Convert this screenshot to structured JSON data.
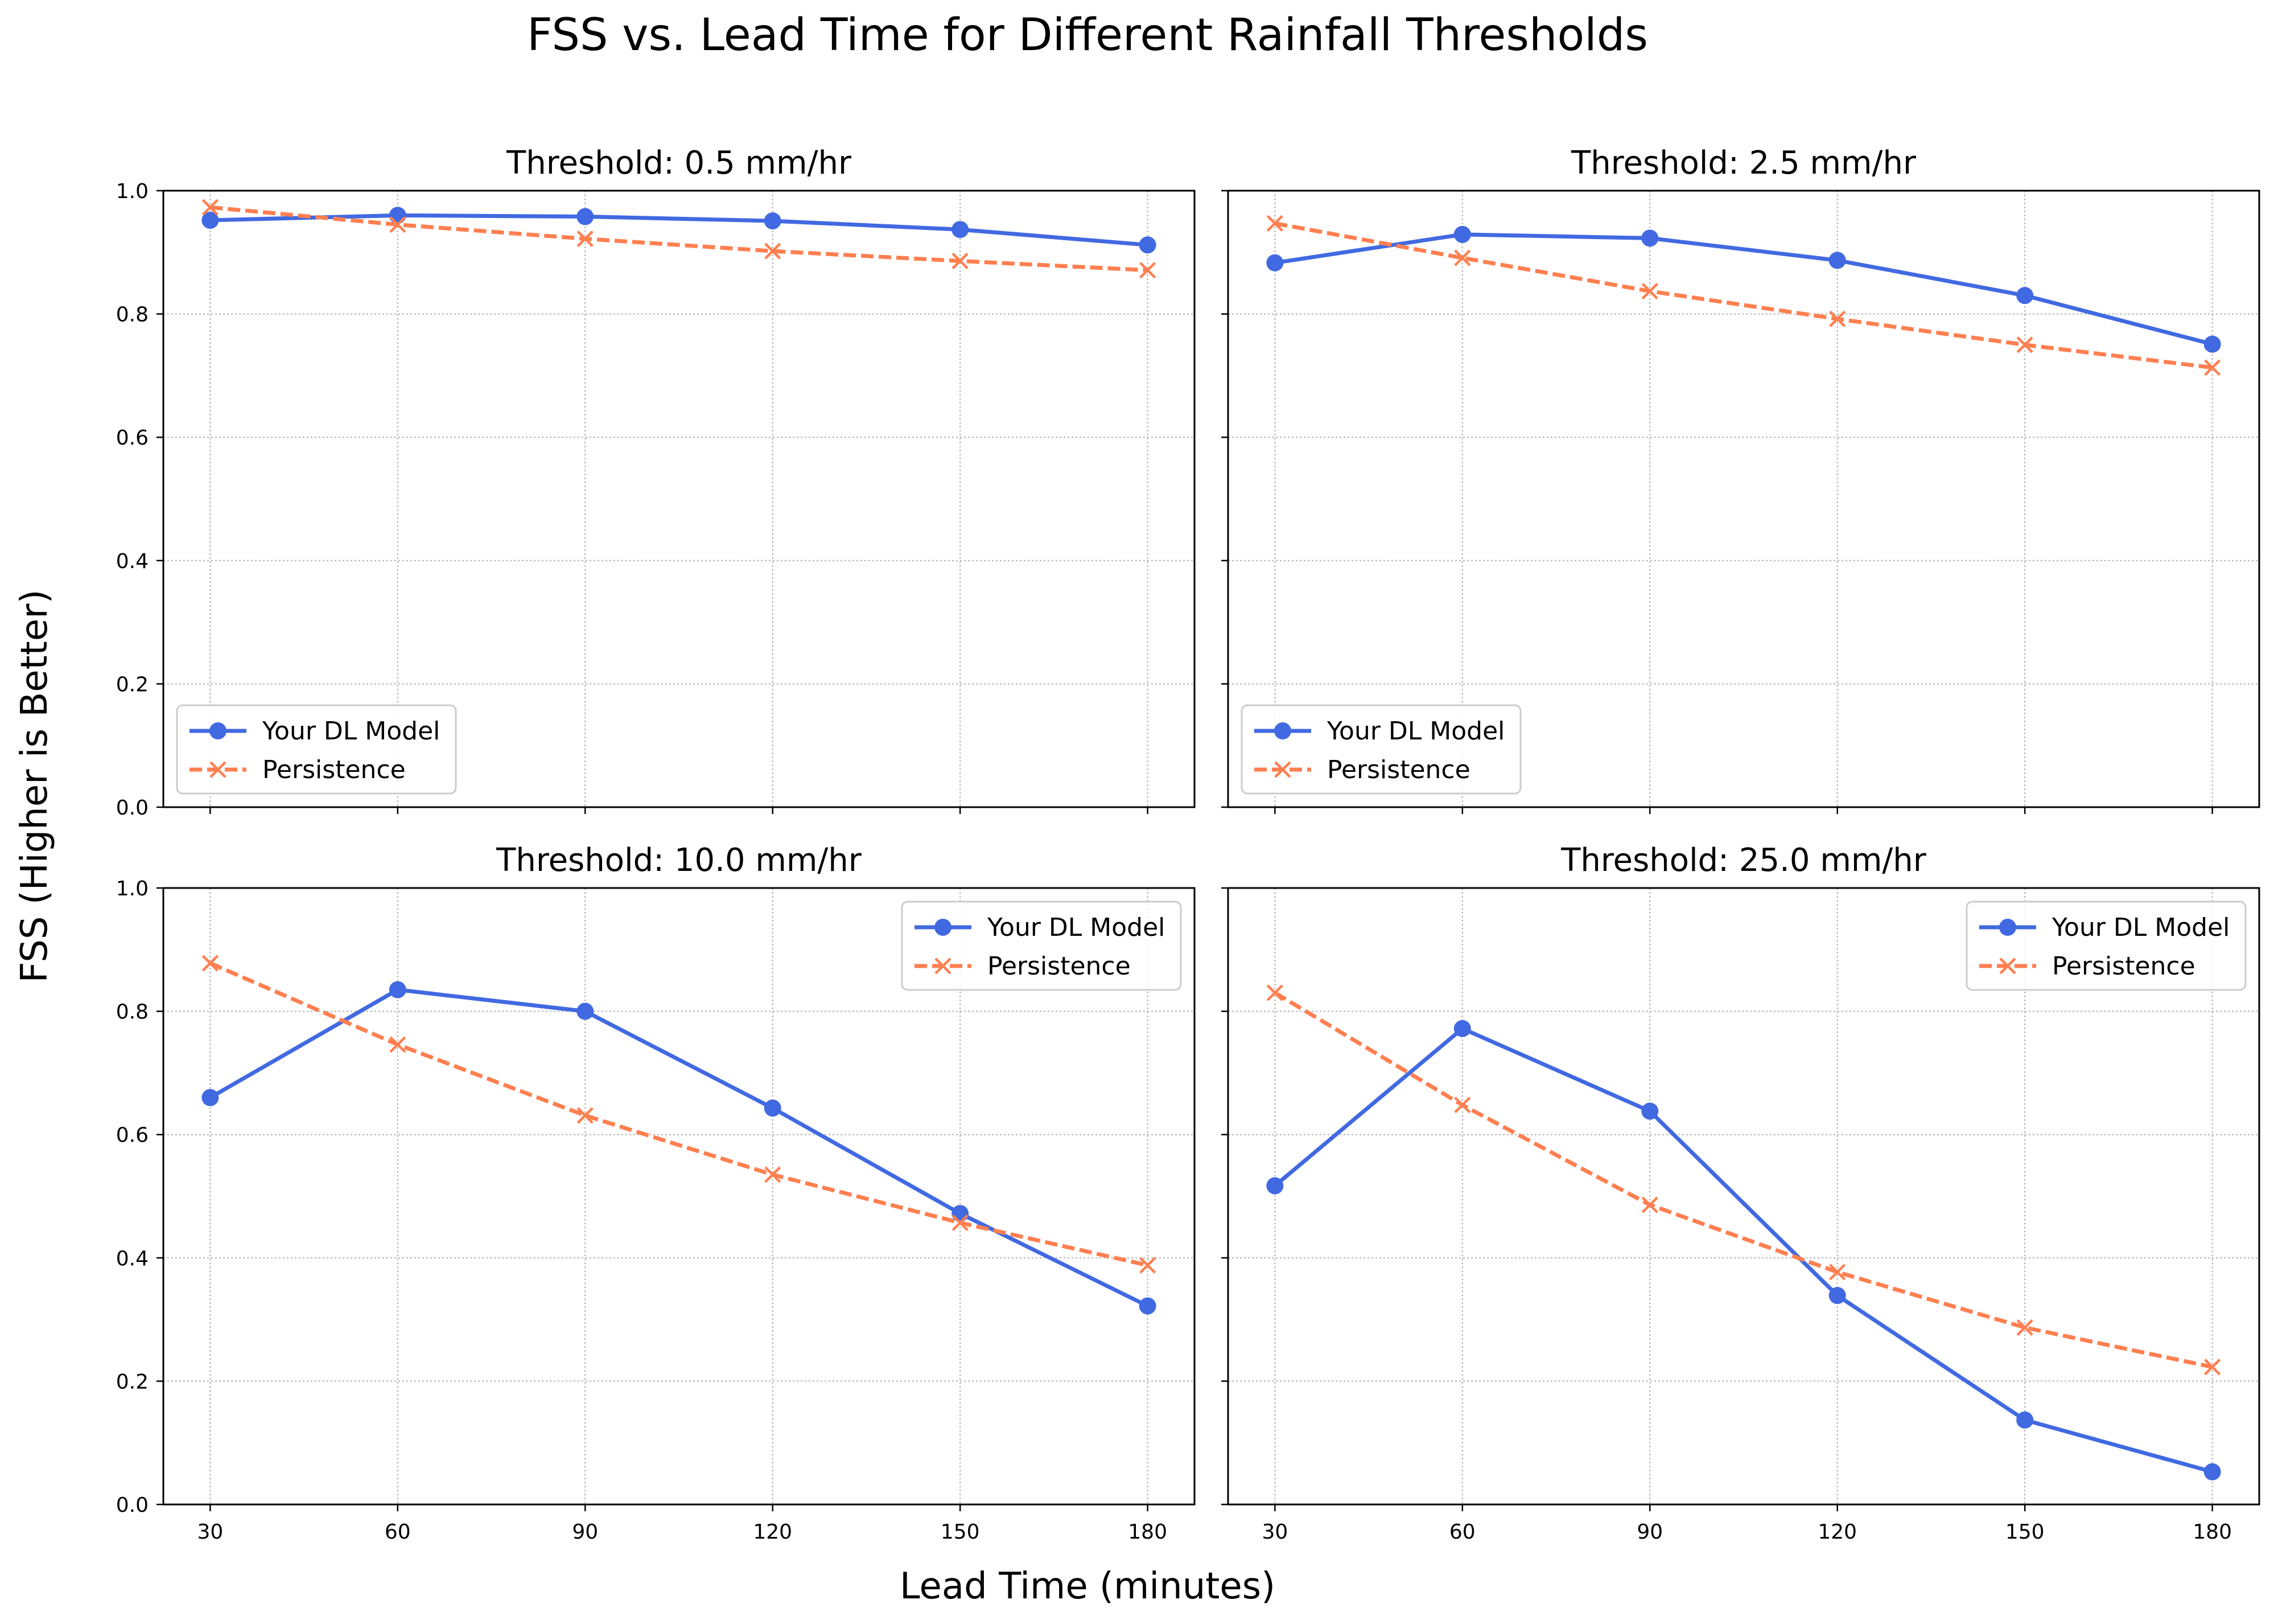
{
  "figure": {
    "title": "FSS vs. Lead Time for Different Rainfall Thresholds",
    "xlabel": "Lead Time (minutes)",
    "ylabel": "FSS (Higher is Better)"
  },
  "colors": {
    "model": "#4169e1",
    "persistence": "#ff7f50",
    "grid": "#b0b0b0",
    "axes": "#000000"
  },
  "chart_data": [
    {
      "type": "line",
      "title": "Threshold: 0.5 mm/hr",
      "x": [
        30,
        60,
        90,
        120,
        150,
        180
      ],
      "xticks": [
        "30",
        "60",
        "90",
        "120",
        "150",
        "180"
      ],
      "yticks": [
        "0.0",
        "0.2",
        "0.4",
        "0.6",
        "0.8",
        "1.0"
      ],
      "ylim": [
        0,
        1
      ],
      "grid": true,
      "legend_position": "lower-left",
      "series": [
        {
          "name": "Your DL Model",
          "marker": "circle",
          "line": "solid",
          "values": [
            0.952,
            0.96,
            0.958,
            0.951,
            0.937,
            0.912
          ]
        },
        {
          "name": "Persistence",
          "marker": "x",
          "line": "dashed",
          "values": [
            0.973,
            0.945,
            0.922,
            0.902,
            0.886,
            0.871
          ]
        }
      ]
    },
    {
      "type": "line",
      "title": "Threshold: 2.5 mm/hr",
      "x": [
        30,
        60,
        90,
        120,
        150,
        180
      ],
      "xticks": [
        "30",
        "60",
        "90",
        "120",
        "150",
        "180"
      ],
      "yticks": [
        "0.0",
        "0.2",
        "0.4",
        "0.6",
        "0.8",
        "1.0"
      ],
      "ylim": [
        0,
        1
      ],
      "grid": true,
      "legend_position": "lower-left",
      "series": [
        {
          "name": "Your DL Model",
          "marker": "circle",
          "line": "solid",
          "values": [
            0.883,
            0.929,
            0.923,
            0.887,
            0.83,
            0.751
          ]
        },
        {
          "name": "Persistence",
          "marker": "x",
          "line": "dashed",
          "values": [
            0.947,
            0.891,
            0.837,
            0.792,
            0.75,
            0.713
          ]
        }
      ]
    },
    {
      "type": "line",
      "title": "Threshold: 10.0 mm/hr",
      "x": [
        30,
        60,
        90,
        120,
        150,
        180
      ],
      "xticks": [
        "30",
        "60",
        "90",
        "120",
        "150",
        "180"
      ],
      "yticks": [
        "0.0",
        "0.2",
        "0.4",
        "0.6",
        "0.8",
        "1.0"
      ],
      "ylim": [
        0,
        1
      ],
      "grid": true,
      "legend_position": "upper-right",
      "series": [
        {
          "name": "Your DL Model",
          "marker": "circle",
          "line": "solid",
          "values": [
            0.66,
            0.835,
            0.8,
            0.643,
            0.472,
            0.322
          ]
        },
        {
          "name": "Persistence",
          "marker": "x",
          "line": "dashed",
          "values": [
            0.878,
            0.746,
            0.631,
            0.535,
            0.457,
            0.388
          ]
        }
      ]
    },
    {
      "type": "line",
      "title": "Threshold: 25.0 mm/hr",
      "x": [
        30,
        60,
        90,
        120,
        150,
        180
      ],
      "xticks": [
        "30",
        "60",
        "90",
        "120",
        "150",
        "180"
      ],
      "yticks": [
        "0.0",
        "0.2",
        "0.4",
        "0.6",
        "0.8",
        "1.0"
      ],
      "ylim": [
        0,
        1
      ],
      "grid": true,
      "legend_position": "upper-right",
      "series": [
        {
          "name": "Your DL Model",
          "marker": "circle",
          "line": "solid",
          "values": [
            0.517,
            0.772,
            0.638,
            0.339,
            0.137,
            0.053
          ]
        },
        {
          "name": "Persistence",
          "marker": "x",
          "line": "dashed",
          "values": [
            0.83,
            0.648,
            0.486,
            0.377,
            0.287,
            0.223
          ]
        }
      ]
    }
  ]
}
